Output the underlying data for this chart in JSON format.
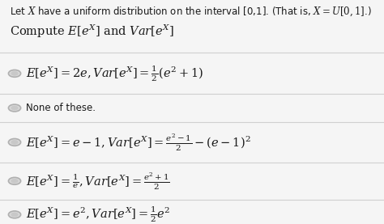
{
  "bg_color": "#f5f5f5",
  "text_color": "#1a1a1a",
  "radio_color": "#b0b0b0",
  "radio_fill": "#d8d8d8",
  "sep_color": "#d0d0d0",
  "title_line1": "Let $\\mathit{X}$ have a uniform distribution on the interval [0,1]. (That is, $\\mathit{X} = U[0, 1]$.)",
  "title_line2": "Compute $\\mathit{E}\\left[e^X\\right]$ and $\\mathit{Var}\\left[e^X\\right]$",
  "options": [
    "$\\mathit{E}\\left[e^X\\right] = 2e, \\mathit{Var}\\left[e^X\\right] = \\frac{1}{2}(e^2 + 1)$",
    "None of these.",
    "$\\mathit{E}\\left[e^X\\right] = e - 1, \\mathit{Var}\\left[e^X\\right] = \\frac{e^2-1}{2} - (e-1)^2$",
    "$\\mathit{E}\\left[e^X\\right] = \\frac{1}{e}, \\mathit{Var}\\left[e^X\\right] = \\frac{e^2+1}{2}$",
    "$\\mathit{E}\\left[e^X\\right] = e^2, \\mathit{Var}\\left[e^X\\right] = \\frac{1}{2}e^2$"
  ],
  "figsize": [
    4.74,
    2.77
  ],
  "dpi": 100,
  "title_fs": 8.5,
  "option_fs": 10.5,
  "none_fs": 8.5
}
